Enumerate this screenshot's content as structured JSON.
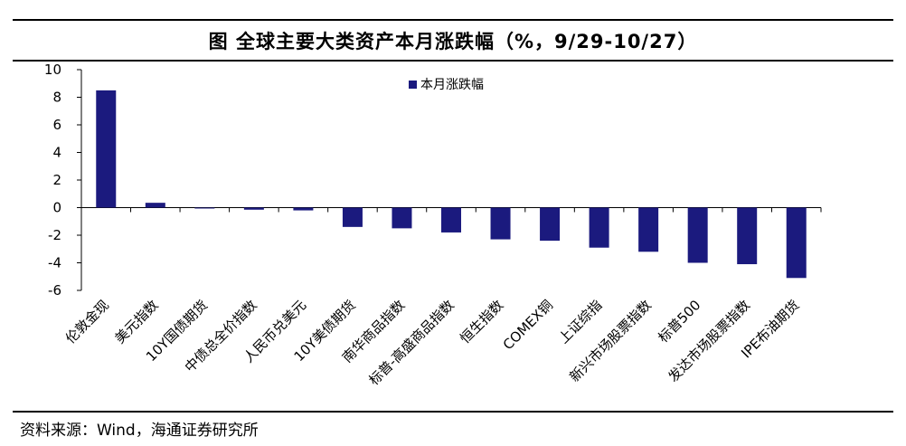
{
  "title": "图    全球主要大类资产本月涨跌幅（%，9/29-10/27）",
  "source": "资料来源：Wind，海通证券研究所",
  "colors": {
    "bar": "#1b1a7e",
    "axis": "#000000"
  },
  "chart_data": {
    "type": "bar",
    "title": "",
    "xlabel": "",
    "ylabel": "",
    "ylim": [
      -6,
      10
    ],
    "yticks": [
      10,
      8,
      6,
      4,
      2,
      0,
      -2,
      -4,
      -6
    ],
    "legend_position": "top-center",
    "grid": false,
    "categories": [
      "伦敦金现",
      "美元指数",
      "10Y国债期货",
      "中债总全价指数",
      "人民币兑美元",
      "10Y美债期货",
      "南华商品指数",
      "标普-高盛商品指数",
      "恒生指数",
      "COMEX铜",
      "上证综指",
      "新兴市场股票指数",
      "标普500",
      "发达市场股票指数",
      "IPE布油期货"
    ],
    "series": [
      {
        "name": "本月涨跌幅",
        "values": [
          8.5,
          0.35,
          -0.05,
          -0.15,
          -0.2,
          -1.4,
          -1.5,
          -1.8,
          -2.3,
          -2.4,
          -2.9,
          -3.2,
          -4.0,
          -4.1,
          -5.1
        ]
      }
    ]
  }
}
